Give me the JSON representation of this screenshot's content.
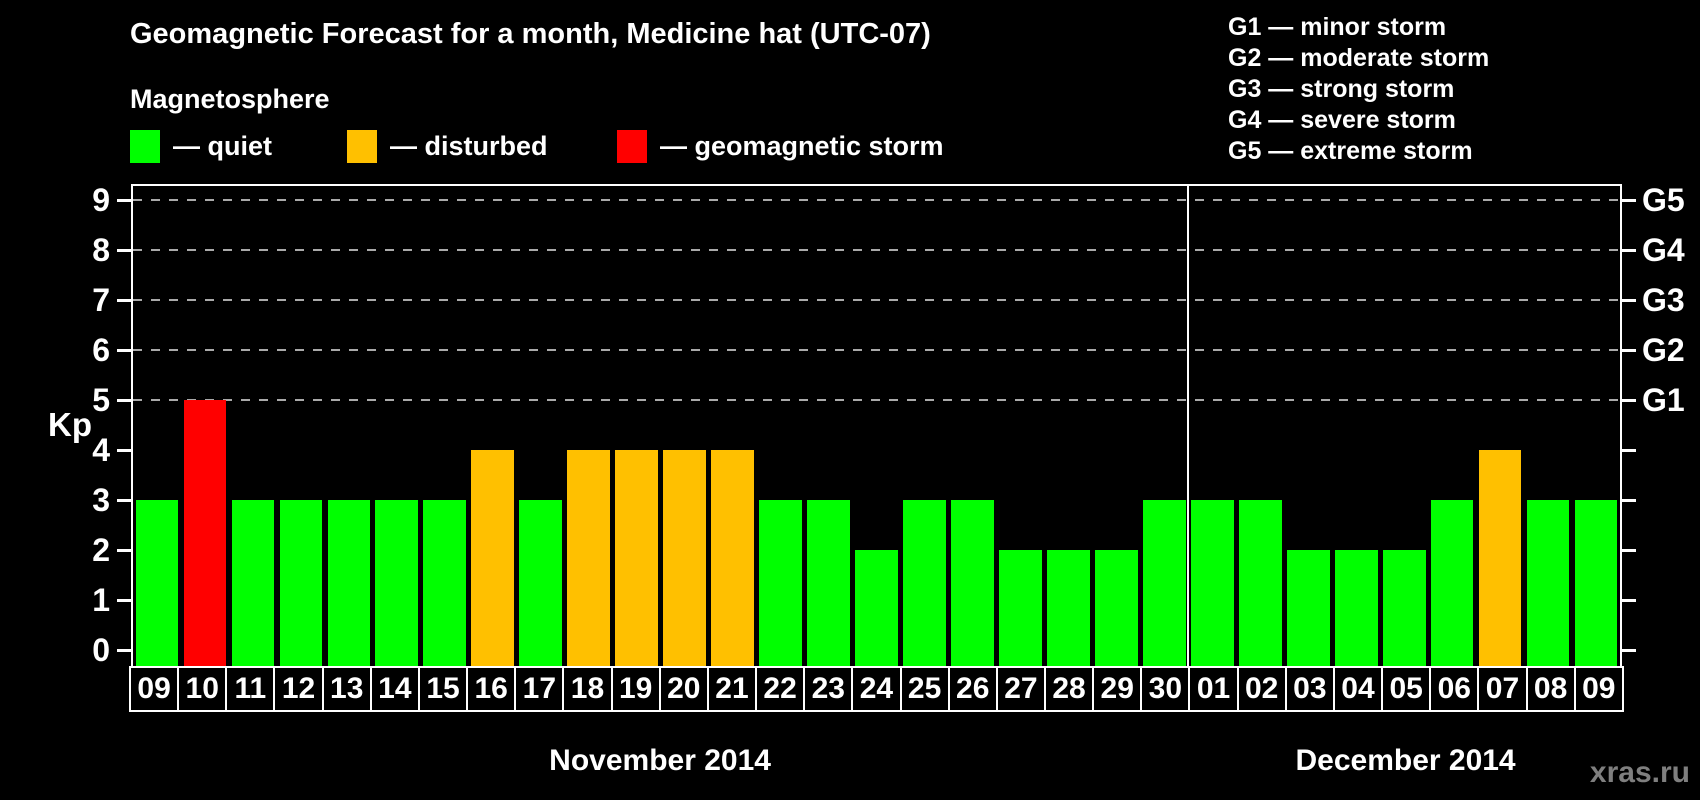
{
  "title": "Geomagnetic Forecast for a month, Medicine hat (UTC-07)",
  "subtitle": "Magnetosphere",
  "legend": {
    "items": [
      {
        "key": "quiet",
        "label": "— quiet",
        "color": "#00ff00"
      },
      {
        "key": "disturbed",
        "label": "— disturbed",
        "color": "#ffc000"
      },
      {
        "key": "storm",
        "label": "— geomagnetic storm",
        "color": "#ff0000"
      }
    ]
  },
  "g_legend": {
    "items": [
      "G1 — minor storm",
      "G2 — moderate storm",
      "G3 — strong storm",
      "G4 — severe storm",
      "G5 — extreme storm"
    ]
  },
  "watermark": "xras.ru",
  "chart_data": {
    "type": "bar",
    "title": "Geomagnetic Forecast for a month, Medicine hat (UTC-07)",
    "ylabel": "Kp",
    "ylim": [
      0,
      9
    ],
    "y_ticks": [
      0,
      1,
      2,
      3,
      4,
      5,
      6,
      7,
      8,
      9
    ],
    "gridlines_kp": [
      5,
      6,
      7,
      8,
      9
    ],
    "g_ticks": [
      {
        "kp": 5,
        "label": "G1"
      },
      {
        "kp": 6,
        "label": "G2"
      },
      {
        "kp": 7,
        "label": "G3"
      },
      {
        "kp": 8,
        "label": "G4"
      },
      {
        "kp": 9,
        "label": "G5"
      }
    ],
    "status_colors": {
      "quiet": "#00ff00",
      "disturbed": "#ffc000",
      "storm": "#ff0000"
    },
    "grid": "dashed",
    "legend_position": "top",
    "months": [
      {
        "name": "November 2014",
        "days": [
          {
            "day": "09",
            "kp": 3,
            "status": "quiet"
          },
          {
            "day": "10",
            "kp": 5,
            "status": "storm"
          },
          {
            "day": "11",
            "kp": 3,
            "status": "quiet"
          },
          {
            "day": "12",
            "kp": 3,
            "status": "quiet"
          },
          {
            "day": "13",
            "kp": 3,
            "status": "quiet"
          },
          {
            "day": "14",
            "kp": 3,
            "status": "quiet"
          },
          {
            "day": "15",
            "kp": 3,
            "status": "quiet"
          },
          {
            "day": "16",
            "kp": 4,
            "status": "disturbed"
          },
          {
            "day": "17",
            "kp": 3,
            "status": "quiet"
          },
          {
            "day": "18",
            "kp": 4,
            "status": "disturbed"
          },
          {
            "day": "19",
            "kp": 4,
            "status": "disturbed"
          },
          {
            "day": "20",
            "kp": 4,
            "status": "disturbed"
          },
          {
            "day": "21",
            "kp": 4,
            "status": "disturbed"
          },
          {
            "day": "22",
            "kp": 3,
            "status": "quiet"
          },
          {
            "day": "23",
            "kp": 3,
            "status": "quiet"
          },
          {
            "day": "24",
            "kp": 2,
            "status": "quiet"
          },
          {
            "day": "25",
            "kp": 3,
            "status": "quiet"
          },
          {
            "day": "26",
            "kp": 3,
            "status": "quiet"
          },
          {
            "day": "27",
            "kp": 2,
            "status": "quiet"
          },
          {
            "day": "28",
            "kp": 2,
            "status": "quiet"
          },
          {
            "day": "29",
            "kp": 2,
            "status": "quiet"
          },
          {
            "day": "30",
            "kp": 3,
            "status": "quiet"
          }
        ]
      },
      {
        "name": "December 2014",
        "days": [
          {
            "day": "01",
            "kp": 3,
            "status": "quiet"
          },
          {
            "day": "02",
            "kp": 3,
            "status": "quiet"
          },
          {
            "day": "03",
            "kp": 2,
            "status": "quiet"
          },
          {
            "day": "04",
            "kp": 2,
            "status": "quiet"
          },
          {
            "day": "05",
            "kp": 2,
            "status": "quiet"
          },
          {
            "day": "06",
            "kp": 3,
            "status": "quiet"
          },
          {
            "day": "07",
            "kp": 4,
            "status": "disturbed"
          },
          {
            "day": "08",
            "kp": 3,
            "status": "quiet"
          },
          {
            "day": "09",
            "kp": 3,
            "status": "quiet"
          }
        ]
      }
    ]
  }
}
